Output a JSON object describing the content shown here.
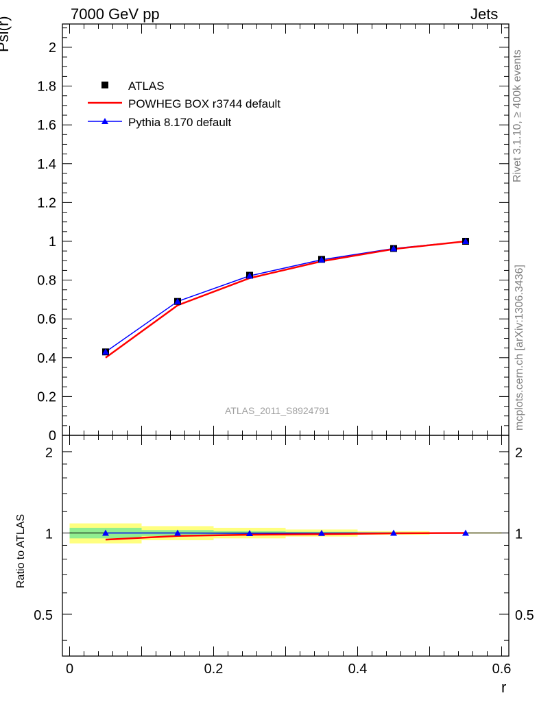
{
  "header": {
    "left": "7000 GeV pp",
    "right": "Jets"
  },
  "side_text": {
    "top": "Rivet 3.1.10, ≥ 400k events",
    "bottom": "mcplots.cern.ch [arXiv:1306.3436]"
  },
  "chart_data": [
    {
      "type": "line",
      "panel": "main",
      "ylabel": "Psi(r)",
      "xlim": [
        -0.01,
        0.61
      ],
      "ylim": [
        0,
        2.12
      ],
      "yticks": [
        "0",
        "0.2",
        "0.4",
        "0.6",
        "0.8",
        "1",
        "1.2",
        "1.4",
        "1.6",
        "1.8",
        "2"
      ],
      "watermark": "ATLAS_2011_S8924791",
      "legend_position": "top-left",
      "x": [
        0.05,
        0.15,
        0.25,
        0.35,
        0.45,
        0.55
      ],
      "series": [
        {
          "name": "ATLAS",
          "style": "marker-square",
          "color": "#000000",
          "values": [
            0.43,
            0.69,
            0.825,
            0.907,
            0.963,
            1.0
          ]
        },
        {
          "name": "POWHEG BOX r3744 default",
          "style": "line",
          "color": "#ff0000",
          "values": [
            0.4,
            0.67,
            0.81,
            0.897,
            0.96,
            1.0
          ]
        },
        {
          "name": "Pythia 8.170 default",
          "style": "line-triangle",
          "color": "#0000ff",
          "values": [
            0.43,
            0.69,
            0.822,
            0.905,
            0.963,
            1.0
          ]
        }
      ]
    },
    {
      "type": "line",
      "panel": "ratio",
      "ylabel": "Ratio to ATLAS",
      "xlabel": "r",
      "xlim": [
        -0.01,
        0.61
      ],
      "ylim": [
        0.35,
        2.3
      ],
      "yscale": "log",
      "yticks": [
        "0.5",
        "1",
        "2"
      ],
      "xticks": [
        "0",
        "0.2",
        "0.4",
        "0.6"
      ],
      "bins": [
        [
          0.0,
          0.1
        ],
        [
          0.1,
          0.2
        ],
        [
          0.2,
          0.3
        ],
        [
          0.3,
          0.4
        ],
        [
          0.4,
          0.5
        ],
        [
          0.5,
          0.6
        ]
      ],
      "stat_band": [
        [
          0.955,
          1.045
        ],
        [
          0.975,
          1.025
        ],
        [
          0.985,
          1.015
        ],
        [
          0.99,
          1.01
        ],
        [
          0.995,
          1.005
        ],
        [
          0.998,
          1.002
        ]
      ],
      "total_band": [
        [
          0.915,
          1.085
        ],
        [
          0.94,
          1.06
        ],
        [
          0.955,
          1.045
        ],
        [
          0.97,
          1.03
        ],
        [
          0.985,
          1.015
        ],
        [
          0.995,
          1.005
        ]
      ],
      "band_colors": {
        "stat": "#90ee90",
        "total": "#ffff7f"
      },
      "x": [
        0.05,
        0.15,
        0.25,
        0.35,
        0.45,
        0.55
      ],
      "series": [
        {
          "name": "POWHEG BOX r3744 default",
          "color": "#ff0000",
          "values": [
            0.945,
            0.975,
            0.985,
            0.99,
            0.997,
            1.0
          ]
        },
        {
          "name": "Pythia 8.170 default",
          "color": "#0000ff",
          "values": [
            1.0,
            1.0,
            0.997,
            0.998,
            1.0,
            1.0
          ]
        }
      ]
    }
  ]
}
